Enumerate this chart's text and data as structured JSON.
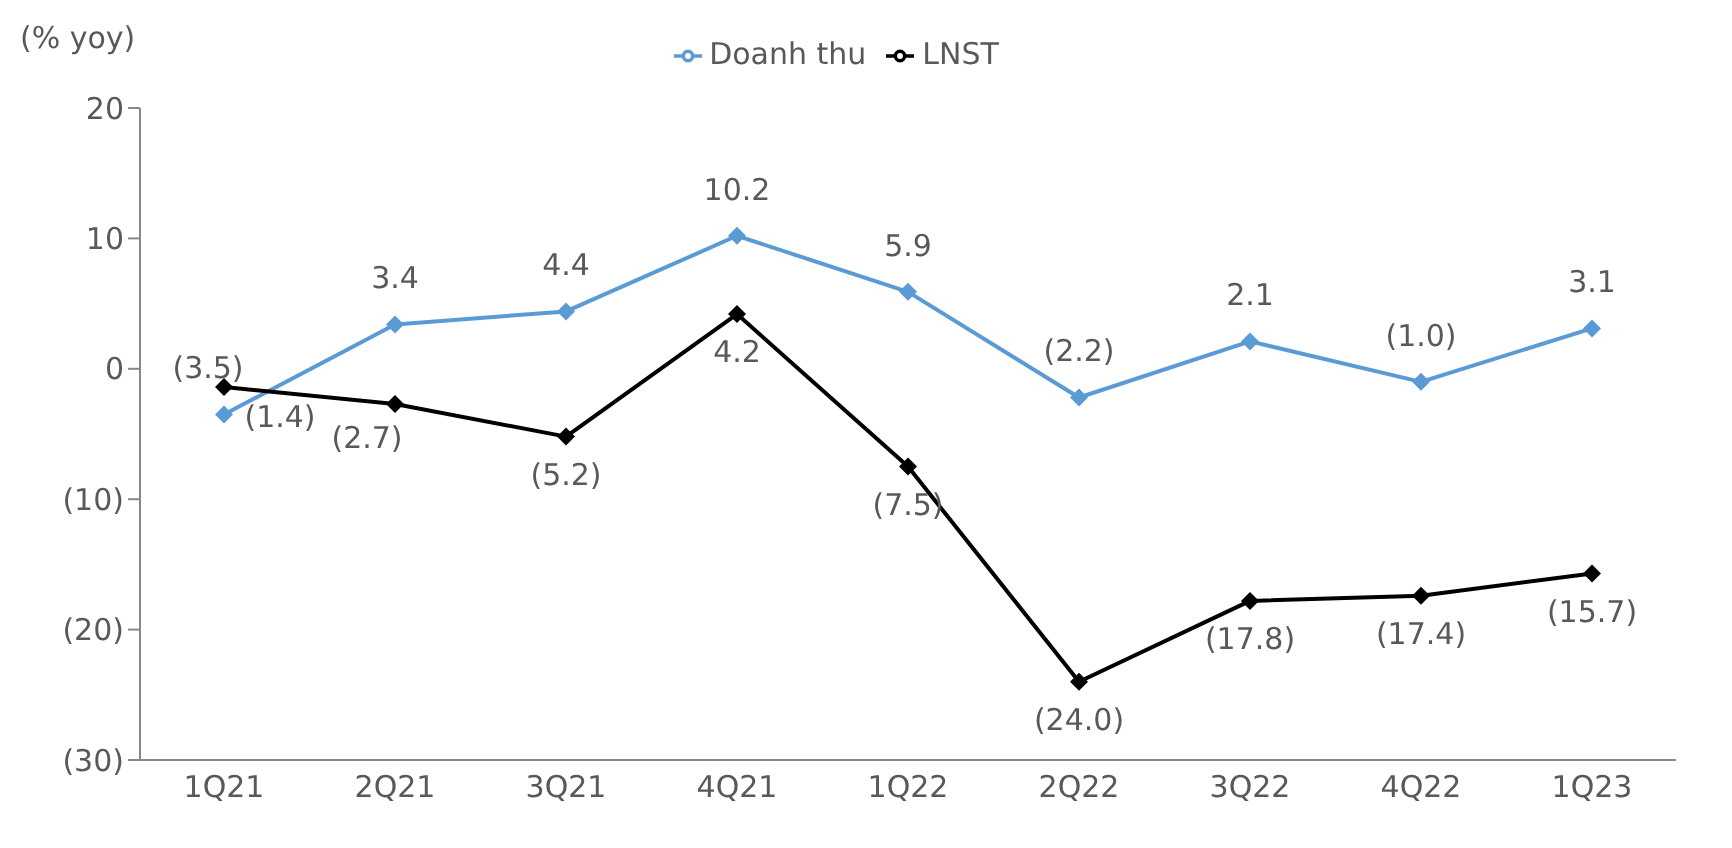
{
  "chart_data": {
    "type": "line",
    "ylabel": "(% yoy)",
    "categories": [
      "1Q21",
      "2Q21",
      "3Q21",
      "4Q21",
      "1Q22",
      "2Q22",
      "3Q22",
      "4Q22",
      "1Q23"
    ],
    "series": [
      {
        "name": "Doanh thu",
        "color": "#5b9bd5",
        "values": [
          -3.5,
          3.4,
          4.4,
          10.2,
          5.9,
          -2.2,
          2.1,
          -1.0,
          3.1
        ],
        "value_labels": [
          "(3.5)",
          "3.4",
          "4.4",
          "10.2",
          "5.9",
          "(2.2)",
          "2.1",
          "(1.0)",
          "3.1"
        ]
      },
      {
        "name": "LNST",
        "color": "#000000",
        "values": [
          -1.4,
          -2.7,
          -5.2,
          4.2,
          -7.5,
          -24.0,
          -17.8,
          -17.4,
          -15.7
        ],
        "value_labels": [
          "(1.4)",
          "(2.7)",
          "(5.2)",
          "4.2",
          "(7.5)",
          "(24.0)",
          "(17.8)",
          "(17.4)",
          "(15.7)"
        ]
      }
    ],
    "ylim": [
      -30,
      20
    ],
    "yticks": [
      20,
      10,
      0,
      {
        "value": -10,
        "label": "(10)"
      },
      {
        "value": -20,
        "label": "(20)"
      },
      {
        "value": -30,
        "label": "(30)"
      }
    ],
    "grid": false,
    "legend": "top",
    "marker": "diamond",
    "line_style": "solid"
  }
}
